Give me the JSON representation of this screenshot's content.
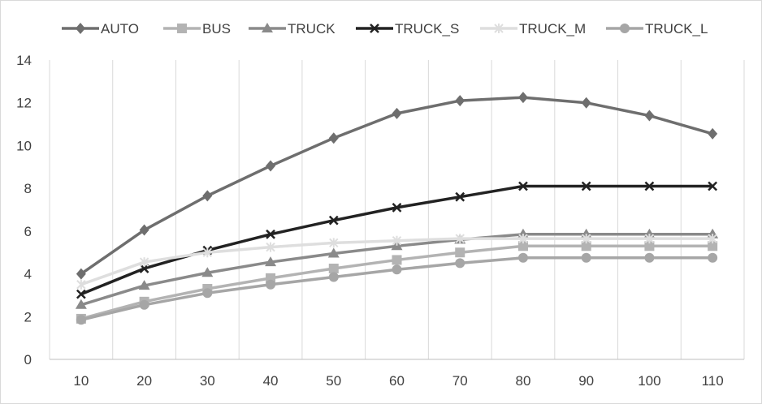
{
  "chart_data": {
    "type": "line",
    "title": "",
    "xlabel": "",
    "ylabel": "",
    "categories": [
      "10",
      "20",
      "30",
      "40",
      "50",
      "60",
      "70",
      "80",
      "90",
      "100",
      "110"
    ],
    "ylim": [
      0,
      14
    ],
    "yticks": [
      "0",
      "2",
      "4",
      "6",
      "8",
      "10",
      "12",
      "14"
    ],
    "grid": "vertical",
    "legend_position": "top",
    "series": [
      {
        "name": "AUTO",
        "color": "#6e6e6e",
        "marker": "diamond",
        "values": [
          4.0,
          6.05,
          7.65,
          9.05,
          10.35,
          11.5,
          12.1,
          12.25,
          12.0,
          11.4,
          10.55
        ]
      },
      {
        "name": "BUS",
        "color": "#b3b3b3",
        "marker": "square",
        "values": [
          1.9,
          2.7,
          3.3,
          3.8,
          4.25,
          4.65,
          5.0,
          5.3,
          5.3,
          5.3,
          5.3
        ]
      },
      {
        "name": "TRUCK",
        "color": "#8a8a8a",
        "marker": "triangle",
        "values": [
          2.55,
          3.45,
          4.05,
          4.55,
          4.95,
          5.3,
          5.6,
          5.85,
          5.85,
          5.85,
          5.85
        ]
      },
      {
        "name": "TRUCK_S",
        "color": "#222222",
        "marker": "x",
        "values": [
          3.05,
          4.25,
          5.1,
          5.85,
          6.5,
          7.1,
          7.6,
          8.1,
          8.1,
          8.1,
          8.1
        ]
      },
      {
        "name": "TRUCK_M",
        "color": "#dedede",
        "marker": "star",
        "values": [
          3.5,
          4.55,
          5.0,
          5.25,
          5.45,
          5.55,
          5.65,
          5.65,
          5.65,
          5.65,
          5.65
        ]
      },
      {
        "name": "TRUCK_L",
        "color": "#a6a6a6",
        "marker": "circle",
        "values": [
          1.85,
          2.55,
          3.1,
          3.5,
          3.85,
          4.2,
          4.5,
          4.75,
          4.75,
          4.75,
          4.75
        ]
      }
    ]
  }
}
